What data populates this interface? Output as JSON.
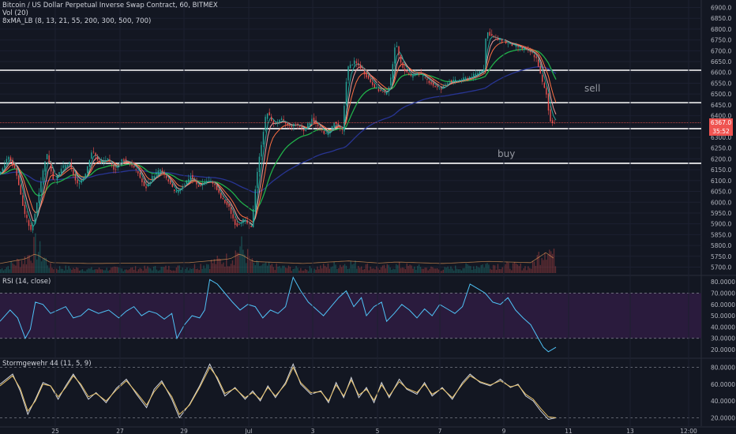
{
  "header": {
    "title": "Bitcoin / US Dollar Perpetual Inverse Swap Contract, 60, BITMEX",
    "vol": "Vol (20)",
    "ma": "8xMA_LB (8, 13, 21, 55, 200, 300, 500, 700)",
    "rsi": "RSI (14, close)",
    "storm": "Stormgewehr 44 (11, 5, 9)"
  },
  "annotations": {
    "sell": "sell",
    "buy": "buy"
  },
  "price_tags": {
    "last": "6367.0",
    "countdown": "35:52"
  },
  "colors": {
    "bg": "#131722",
    "up": "#26a69a",
    "down": "#ef5350",
    "rsi_line": "#4fc3f7",
    "rsi_band": "#2a1b3d",
    "ma_green": "#21b04a",
    "ma_navy": "#283593",
    "stoch_k": "#e8c26a",
    "stoch_d": "#d1d4dc"
  },
  "chart_data": [
    {
      "type": "candlestick",
      "title": "Bitcoin / US Dollar Perpetual Inverse Swap Contract, 60, BITMEX",
      "x_tick_labels": [
        "25",
        "27",
        "29",
        "Jul",
        "3",
        "5",
        "7",
        "9",
        "11",
        "13",
        "12:00"
      ],
      "y_ticks": [
        5700,
        5750,
        5800,
        5850,
        5900,
        5950,
        6000,
        6050,
        6100,
        6150,
        6200,
        6250,
        6300,
        6350,
        6400,
        6450,
        6500,
        6550,
        6600,
        6650,
        6700,
        6750,
        6800,
        6850,
        6900
      ],
      "ylim": [
        5680,
        6920
      ],
      "horizontal_levels": [
        6610,
        6460,
        6340,
        6180
      ],
      "last_price": 6367.0,
      "close_path": [
        [
          0,
          6130
        ],
        [
          8,
          6210
        ],
        [
          14,
          6140
        ],
        [
          20,
          5960
        ],
        [
          26,
          5860
        ],
        [
          32,
          6050
        ],
        [
          38,
          6230
        ],
        [
          44,
          6090
        ],
        [
          50,
          6160
        ],
        [
          56,
          6180
        ],
        [
          62,
          6080
        ],
        [
          68,
          6120
        ],
        [
          74,
          6240
        ],
        [
          80,
          6180
        ],
        [
          86,
          6200
        ],
        [
          92,
          6150
        ],
        [
          98,
          6200
        ],
        [
          104,
          6180
        ],
        [
          110,
          6140
        ],
        [
          116,
          6060
        ],
        [
          122,
          6120
        ],
        [
          128,
          6150
        ],
        [
          134,
          6100
        ],
        [
          140,
          6040
        ],
        [
          146,
          6080
        ],
        [
          152,
          6120
        ],
        [
          158,
          6070
        ],
        [
          164,
          6100
        ],
        [
          170,
          6090
        ],
        [
          176,
          6020
        ],
        [
          182,
          5980
        ],
        [
          188,
          5890
        ],
        [
          194,
          5920
        ],
        [
          200,
          5880
        ],
        [
          204,
          6110
        ],
        [
          208,
          6270
        ],
        [
          212,
          6420
        ],
        [
          218,
          6360
        ],
        [
          224,
          6380
        ],
        [
          230,
          6350
        ],
        [
          236,
          6360
        ],
        [
          242,
          6330
        ],
        [
          248,
          6390
        ],
        [
          254,
          6340
        ],
        [
          260,
          6310
        ],
        [
          266,
          6370
        ],
        [
          272,
          6330
        ],
        [
          276,
          6620
        ],
        [
          282,
          6650
        ],
        [
          288,
          6610
        ],
        [
          294,
          6560
        ],
        [
          300,
          6520
        ],
        [
          306,
          6500
        ],
        [
          310,
          6550
        ],
        [
          314,
          6740
        ],
        [
          320,
          6620
        ],
        [
          326,
          6580
        ],
        [
          332,
          6600
        ],
        [
          338,
          6570
        ],
        [
          344,
          6540
        ],
        [
          350,
          6520
        ],
        [
          356,
          6560
        ],
        [
          362,
          6560
        ],
        [
          368,
          6570
        ],
        [
          374,
          6580
        ],
        [
          380,
          6600
        ],
        [
          384,
          6620
        ],
        [
          386,
          6790
        ],
        [
          392,
          6760
        ],
        [
          398,
          6750
        ],
        [
          404,
          6730
        ],
        [
          410,
          6720
        ],
        [
          414,
          6710
        ],
        [
          418,
          6700
        ],
        [
          422,
          6690
        ],
        [
          426,
          6660
        ],
        [
          430,
          6560
        ],
        [
          434,
          6490
        ],
        [
          436,
          6380
        ],
        [
          440,
          6367
        ]
      ],
      "volume_ylim": [
        0,
        100
      ],
      "volume_profile": [
        [
          0,
          8
        ],
        [
          20,
          30
        ],
        [
          28,
          55
        ],
        [
          40,
          12
        ],
        [
          70,
          8
        ],
        [
          120,
          10
        ],
        [
          150,
          12
        ],
        [
          182,
          30
        ],
        [
          190,
          55
        ],
        [
          200,
          18
        ],
        [
          210,
          15
        ],
        [
          240,
          8
        ],
        [
          276,
          20
        ],
        [
          300,
          10
        ],
        [
          314,
          15
        ],
        [
          350,
          8
        ],
        [
          386,
          18
        ],
        [
          420,
          12
        ],
        [
          432,
          60
        ],
        [
          440,
          25
        ]
      ]
    },
    {
      "type": "line",
      "title": "RSI (14, close)",
      "y_ticks": [
        20,
        30,
        40,
        50,
        60,
        70,
        80
      ],
      "y_tick_labels": [
        "20.0000",
        "30.0000",
        "40.0000",
        "50.0000",
        "60.0000",
        "70.0000",
        "80.0000"
      ],
      "ylim": [
        13,
        85
      ],
      "band": [
        30,
        70
      ],
      "values": [
        [
          0,
          45
        ],
        [
          8,
          55
        ],
        [
          14,
          48
        ],
        [
          20,
          30
        ],
        [
          24,
          38
        ],
        [
          28,
          62
        ],
        [
          34,
          60
        ],
        [
          40,
          52
        ],
        [
          46,
          55
        ],
        [
          52,
          58
        ],
        [
          58,
          48
        ],
        [
          64,
          50
        ],
        [
          70,
          56
        ],
        [
          78,
          52
        ],
        [
          86,
          55
        ],
        [
          94,
          48
        ],
        [
          100,
          54
        ],
        [
          106,
          58
        ],
        [
          112,
          50
        ],
        [
          118,
          54
        ],
        [
          124,
          52
        ],
        [
          130,
          47
        ],
        [
          136,
          52
        ],
        [
          140,
          30
        ],
        [
          146,
          42
        ],
        [
          152,
          50
        ],
        [
          158,
          48
        ],
        [
          162,
          55
        ],
        [
          166,
          82
        ],
        [
          172,
          78
        ],
        [
          178,
          70
        ],
        [
          184,
          62
        ],
        [
          190,
          55
        ],
        [
          196,
          60
        ],
        [
          202,
          58
        ],
        [
          208,
          48
        ],
        [
          214,
          55
        ],
        [
          220,
          52
        ],
        [
          226,
          58
        ],
        [
          232,
          84
        ],
        [
          238,
          72
        ],
        [
          244,
          62
        ],
        [
          250,
          56
        ],
        [
          256,
          50
        ],
        [
          262,
          58
        ],
        [
          268,
          66
        ],
        [
          274,
          72
        ],
        [
          280,
          58
        ],
        [
          286,
          66
        ],
        [
          290,
          50
        ],
        [
          296,
          58
        ],
        [
          302,
          62
        ],
        [
          306,
          45
        ],
        [
          312,
          52
        ],
        [
          318,
          60
        ],
        [
          324,
          55
        ],
        [
          330,
          48
        ],
        [
          336,
          56
        ],
        [
          342,
          50
        ],
        [
          348,
          60
        ],
        [
          354,
          56
        ],
        [
          360,
          52
        ],
        [
          366,
          58
        ],
        [
          372,
          78
        ],
        [
          378,
          74
        ],
        [
          384,
          70
        ],
        [
          390,
          62
        ],
        [
          396,
          60
        ],
        [
          402,
          66
        ],
        [
          408,
          55
        ],
        [
          414,
          48
        ],
        [
          420,
          42
        ],
        [
          426,
          30
        ],
        [
          430,
          22
        ],
        [
          434,
          18
        ],
        [
          440,
          22
        ]
      ]
    },
    {
      "type": "line",
      "title": "Stormgewehr 44 (11, 5, 9)",
      "y_ticks": [
        20,
        40,
        60,
        80
      ],
      "y_tick_labels": [
        "20.0000",
        "40.0000",
        "60.0000",
        "80.0000"
      ],
      "ylim": [
        10,
        90
      ],
      "series": [
        {
          "values": [
            [
              0,
              60
            ],
            [
              10,
              72
            ],
            [
              16,
              52
            ],
            [
              22,
              24
            ],
            [
              28,
              42
            ],
            [
              34,
              62
            ],
            [
              40,
              58
            ],
            [
              46,
              42
            ],
            [
              52,
              58
            ],
            [
              58,
              72
            ],
            [
              64,
              58
            ],
            [
              70,
              42
            ],
            [
              76,
              50
            ],
            [
              84,
              38
            ],
            [
              92,
              55
            ],
            [
              100,
              66
            ],
            [
              108,
              48
            ],
            [
              116,
              32
            ],
            [
              122,
              54
            ],
            [
              128,
              64
            ],
            [
              136,
              42
            ],
            [
              142,
              20
            ],
            [
              150,
              36
            ],
            [
              158,
              58
            ],
            [
              166,
              84
            ],
            [
              172,
              66
            ],
            [
              178,
              46
            ],
            [
              186,
              56
            ],
            [
              194,
              42
            ],
            [
              200,
              52
            ],
            [
              206,
              40
            ],
            [
              212,
              58
            ],
            [
              218,
              44
            ],
            [
              226,
              62
            ],
            [
              232,
              84
            ],
            [
              238,
              60
            ],
            [
              246,
              48
            ],
            [
              254,
              52
            ],
            [
              260,
              38
            ],
            [
              266,
              62
            ],
            [
              272,
              44
            ],
            [
              278,
              68
            ],
            [
              284,
              44
            ],
            [
              290,
              56
            ],
            [
              296,
              38
            ],
            [
              302,
              62
            ],
            [
              308,
              44
            ],
            [
              316,
              66
            ],
            [
              322,
              54
            ],
            [
              330,
              48
            ],
            [
              336,
              62
            ],
            [
              342,
              46
            ],
            [
              350,
              56
            ],
            [
              358,
              42
            ],
            [
              366,
              62
            ],
            [
              372,
              72
            ],
            [
              380,
              62
            ],
            [
              388,
              58
            ],
            [
              396,
              66
            ],
            [
              404,
              56
            ],
            [
              410,
              60
            ],
            [
              416,
              46
            ],
            [
              422,
              40
            ],
            [
              428,
              28
            ],
            [
              434,
              18
            ],
            [
              440,
              20
            ]
          ]
        },
        {
          "values": [
            [
              0,
              58
            ],
            [
              10,
              70
            ],
            [
              16,
              55
            ],
            [
              22,
              28
            ],
            [
              28,
              40
            ],
            [
              34,
              60
            ],
            [
              40,
              58
            ],
            [
              46,
              45
            ],
            [
              52,
              56
            ],
            [
              58,
              70
            ],
            [
              64,
              60
            ],
            [
              70,
              45
            ],
            [
              76,
              49
            ],
            [
              84,
              40
            ],
            [
              92,
              53
            ],
            [
              100,
              64
            ],
            [
              108,
              50
            ],
            [
              116,
              35
            ],
            [
              122,
              51
            ],
            [
              128,
              62
            ],
            [
              136,
              45
            ],
            [
              142,
              24
            ],
            [
              150,
              35
            ],
            [
              158,
              56
            ],
            [
              166,
              80
            ],
            [
              172,
              68
            ],
            [
              178,
              49
            ],
            [
              186,
              55
            ],
            [
              194,
              44
            ],
            [
              200,
              50
            ],
            [
              206,
              42
            ],
            [
              212,
              56
            ],
            [
              218,
              46
            ],
            [
              226,
              60
            ],
            [
              232,
              80
            ],
            [
              238,
              62
            ],
            [
              246,
              50
            ],
            [
              254,
              51
            ],
            [
              260,
              40
            ],
            [
              266,
              59
            ],
            [
              272,
              46
            ],
            [
              278,
              65
            ],
            [
              284,
              47
            ],
            [
              290,
              54
            ],
            [
              296,
              41
            ],
            [
              302,
              59
            ],
            [
              308,
              46
            ],
            [
              316,
              63
            ],
            [
              322,
              55
            ],
            [
              330,
              50
            ],
            [
              336,
              60
            ],
            [
              342,
              48
            ],
            [
              350,
              55
            ],
            [
              358,
              44
            ],
            [
              366,
              60
            ],
            [
              372,
              70
            ],
            [
              380,
              63
            ],
            [
              388,
              59
            ],
            [
              396,
              64
            ],
            [
              404,
              57
            ],
            [
              410,
              59
            ],
            [
              416,
              48
            ],
            [
              422,
              42
            ],
            [
              428,
              31
            ],
            [
              434,
              21
            ],
            [
              440,
              20
            ]
          ]
        }
      ],
      "dashed_levels": [
        20,
        80
      ]
    }
  ]
}
